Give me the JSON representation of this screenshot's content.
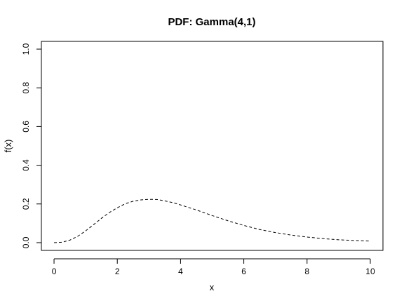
{
  "chart_data": {
    "type": "line",
    "title": "PDF: Gamma(4,1)",
    "xlabel": "x",
    "ylabel": "f(x)",
    "xlim": [
      -0.4,
      10.4
    ],
    "ylim": [
      -0.04,
      1.04
    ],
    "x_ticks": [
      0,
      2,
      4,
      6,
      8,
      10
    ],
    "x_tick_labels": [
      "0",
      "2",
      "4",
      "6",
      "8",
      "10"
    ],
    "y_ticks": [
      0.0,
      0.2,
      0.4,
      0.6,
      0.8,
      1.0
    ],
    "y_tick_labels": [
      "0.0",
      "0.2",
      "0.4",
      "0.6",
      "0.8",
      "1.0"
    ],
    "grid": false,
    "line_style": "dashed",
    "series": [
      {
        "x": [
          0,
          0.25,
          0.5,
          0.75,
          1,
          1.25,
          1.5,
          1.75,
          2,
          2.25,
          2.5,
          2.75,
          3,
          3.25,
          3.5,
          3.75,
          4,
          4.5,
          5,
          5.5,
          6,
          6.5,
          7,
          7.5,
          8,
          8.5,
          9,
          9.5,
          10
        ],
        "y": [
          0,
          0.002,
          0.013,
          0.033,
          0.061,
          0.093,
          0.126,
          0.156,
          0.18,
          0.201,
          0.214,
          0.221,
          0.224,
          0.223,
          0.216,
          0.207,
          0.195,
          0.169,
          0.14,
          0.113,
          0.089,
          0.068,
          0.052,
          0.039,
          0.029,
          0.021,
          0.015,
          0.011,
          0.008
        ]
      }
    ]
  }
}
